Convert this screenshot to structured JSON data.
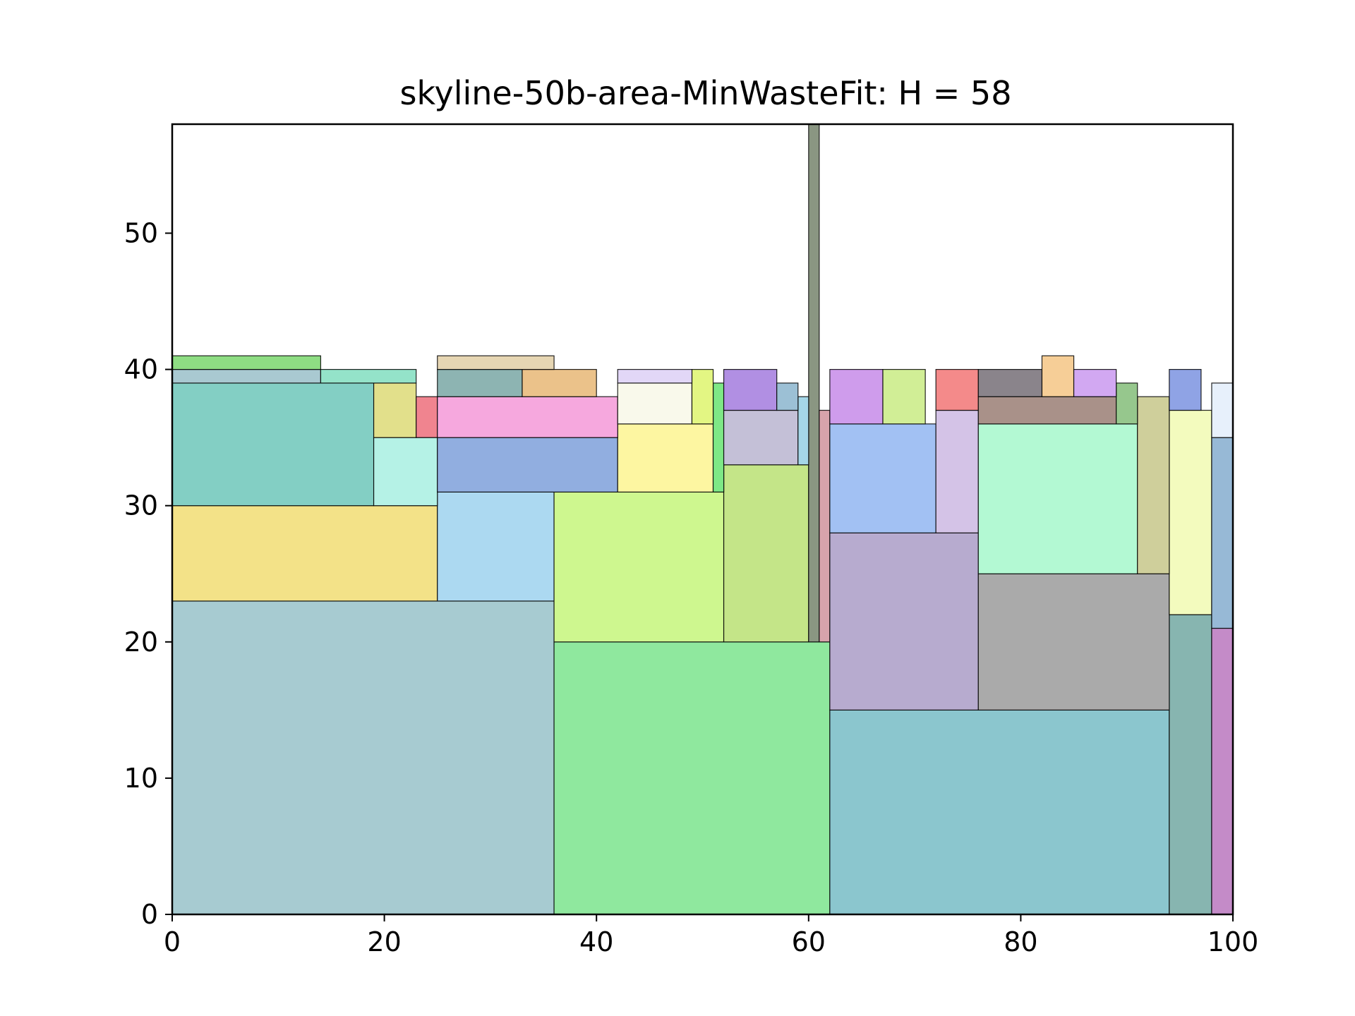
{
  "chart_data": {
    "type": "rectangle-packing",
    "title": "skyline-50b-area-MinWasteFit: H = 58",
    "xlabel": "",
    "ylabel": "",
    "xlim": [
      0,
      100
    ],
    "ylim": [
      0,
      58
    ],
    "xticks": [
      0,
      20,
      40,
      60,
      80,
      100
    ],
    "yticks": [
      0,
      10,
      20,
      30,
      40,
      50
    ],
    "bins_height": 58,
    "rectangles": [
      {
        "x": 0,
        "y": 0,
        "w": 36,
        "h": 23,
        "color": "#a7cbd1"
      },
      {
        "x": 36,
        "y": 0,
        "w": 26,
        "h": 20,
        "color": "#8fe89e"
      },
      {
        "x": 62,
        "y": 0,
        "w": 32,
        "h": 15,
        "color": "#8bc6ce"
      },
      {
        "x": 94,
        "y": 0,
        "w": 4,
        "h": 22,
        "color": "#87b5b0"
      },
      {
        "x": 98,
        "y": 0,
        "w": 2,
        "h": 21,
        "color": "#c48bc8"
      },
      {
        "x": 0,
        "y": 23,
        "w": 25,
        "h": 7,
        "color": "#f3e288"
      },
      {
        "x": 25,
        "y": 23,
        "w": 11,
        "h": 8,
        "color": "#acd9f1"
      },
      {
        "x": 36,
        "y": 20,
        "w": 16,
        "h": 11,
        "color": "#cef78f"
      },
      {
        "x": 52,
        "y": 20,
        "w": 8,
        "h": 13,
        "color": "#c4e588"
      },
      {
        "x": 60,
        "y": 20,
        "w": 1,
        "h": 38,
        "color": "#8a9682"
      },
      {
        "x": 61,
        "y": 20,
        "w": 1,
        "h": 17,
        "color": "#d7a3ab"
      },
      {
        "x": 62,
        "y": 15,
        "w": 14,
        "h": 13,
        "color": "#b7abcf"
      },
      {
        "x": 76,
        "y": 15,
        "w": 18,
        "h": 10,
        "color": "#aaaaaa"
      },
      {
        "x": 94,
        "y": 22,
        "w": 4,
        "h": 15,
        "color": "#f3fbbe"
      },
      {
        "x": 98,
        "y": 21,
        "w": 2,
        "h": 14,
        "color": "#97b9d6"
      },
      {
        "x": 0,
        "y": 30,
        "w": 19,
        "h": 9,
        "color": "#83cfc4"
      },
      {
        "x": 19,
        "y": 30,
        "w": 6,
        "h": 5,
        "color": "#b5f2e6"
      },
      {
        "x": 25,
        "y": 31,
        "w": 17,
        "h": 4,
        "color": "#91aee0"
      },
      {
        "x": 42,
        "y": 31,
        "w": 9,
        "h": 5,
        "color": "#fdf6a1"
      },
      {
        "x": 51,
        "y": 31,
        "w": 1,
        "h": 8,
        "color": "#7ee886"
      },
      {
        "x": 52,
        "y": 33,
        "w": 7,
        "h": 4,
        "color": "#c4c0d7"
      },
      {
        "x": 59,
        "y": 33,
        "w": 1,
        "h": 5,
        "color": "#a5d6e7"
      },
      {
        "x": 62,
        "y": 28,
        "w": 10,
        "h": 8,
        "color": "#a2c1f3"
      },
      {
        "x": 72,
        "y": 28,
        "w": 4,
        "h": 9,
        "color": "#d4c3e7"
      },
      {
        "x": 76,
        "y": 25,
        "w": 15,
        "h": 11,
        "color": "#b3f9d3"
      },
      {
        "x": 91,
        "y": 25,
        "w": 3,
        "h": 13,
        "color": "#cfcf9b"
      },
      {
        "x": 98,
        "y": 35,
        "w": 2,
        "h": 4,
        "color": "#e7f0fb"
      },
      {
        "x": 19,
        "y": 35,
        "w": 4,
        "h": 4,
        "color": "#e2e08b"
      },
      {
        "x": 23,
        "y": 35,
        "w": 2,
        "h": 3,
        "color": "#f0848f"
      },
      {
        "x": 25,
        "y": 35,
        "w": 17,
        "h": 3,
        "color": "#f6a8de"
      },
      {
        "x": 42,
        "y": 36,
        "w": 7,
        "h": 3,
        "color": "#f9f9eb"
      },
      {
        "x": 49,
        "y": 36,
        "w": 2,
        "h": 4,
        "color": "#e3f683"
      },
      {
        "x": 52,
        "y": 37,
        "w": 5,
        "h": 3,
        "color": "#b18fe3"
      },
      {
        "x": 57,
        "y": 37,
        "w": 2,
        "h": 2,
        "color": "#9cc0d5"
      },
      {
        "x": 62,
        "y": 36,
        "w": 5,
        "h": 4,
        "color": "#cf9cec"
      },
      {
        "x": 67,
        "y": 36,
        "w": 4,
        "h": 4,
        "color": "#d1ee96"
      },
      {
        "x": 72,
        "y": 37,
        "w": 4,
        "h": 3,
        "color": "#f48a8a"
      },
      {
        "x": 76,
        "y": 36,
        "w": 13,
        "h": 2,
        "color": "#a99189"
      },
      {
        "x": 89,
        "y": 36,
        "w": 2,
        "h": 3,
        "color": "#96c78d"
      },
      {
        "x": 94,
        "y": 37,
        "w": 3,
        "h": 3,
        "color": "#8fa3e5"
      },
      {
        "x": 0,
        "y": 39,
        "w": 14,
        "h": 1,
        "color": "#a9c9d1"
      },
      {
        "x": 0,
        "y": 40,
        "w": 14,
        "h": 1,
        "color": "#8edd83"
      },
      {
        "x": 14,
        "y": 39,
        "w": 9,
        "h": 1,
        "color": "#94e3c9"
      },
      {
        "x": 25,
        "y": 38,
        "w": 8,
        "h": 2,
        "color": "#8db4b2"
      },
      {
        "x": 33,
        "y": 38,
        "w": 7,
        "h": 2,
        "color": "#ebc28a"
      },
      {
        "x": 25,
        "y": 40,
        "w": 11,
        "h": 1,
        "color": "#e6d6b3"
      },
      {
        "x": 42,
        "y": 39,
        "w": 7,
        "h": 1,
        "color": "#e2d7f7"
      },
      {
        "x": 76,
        "y": 38,
        "w": 6,
        "h": 2,
        "color": "#8a848b"
      },
      {
        "x": 82,
        "y": 38,
        "w": 3,
        "h": 3,
        "color": "#f6ce97"
      },
      {
        "x": 85,
        "y": 38,
        "w": 4,
        "h": 2,
        "color": "#d2a8f2"
      }
    ]
  }
}
